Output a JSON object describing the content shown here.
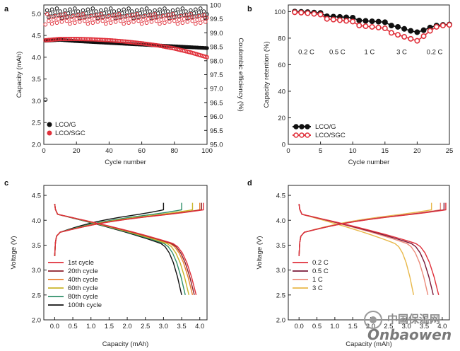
{
  "colors": {
    "black": "#111111",
    "red": "#e0313b",
    "c_1st": "#e0313b",
    "c_20th": "#8b1e2a",
    "c_40th": "#e8812f",
    "c_60th": "#c9b52a",
    "c_80th": "#2f8f6a",
    "c_100th": "#111111",
    "c_02C": "#e0313b",
    "c_05C": "#7a1838",
    "c_1C": "#ec8a7a",
    "c_3C": "#e8b84a",
    "axis": "#222222"
  },
  "watermark": {
    "cn": "中国保温网",
    "en": "Onbaowen"
  },
  "chart_data": [
    {
      "panel": "a",
      "type": "scatter",
      "xlabel": "Cycle number",
      "ylabel": "Capacity (mAh)",
      "y2label": "Coulombic efficiency (%)",
      "xlim": [
        0,
        100
      ],
      "ylim": [
        2.0,
        5.2
      ],
      "y2lim": [
        95.0,
        100.0
      ],
      "xticks": [
        "0",
        "20",
        "40",
        "60",
        "80",
        "100"
      ],
      "yticks": [
        "2.0",
        "2.5",
        "3.0",
        "3.5",
        "4.0",
        "4.5",
        "5.0"
      ],
      "y2ticks": [
        "95.0",
        "95.5",
        "96.0",
        "96.5",
        "97.0",
        "97.5",
        "98.0",
        "98.5",
        "99.0",
        "99.5",
        "100"
      ],
      "legend": [
        "LCO/G",
        "LCO/SGC"
      ],
      "legend_position": "bottom-left",
      "series": [
        {
          "name": "LCO/G",
          "color": "black",
          "capacity": [
            [
              1,
              4.38
            ],
            [
              10,
              4.4
            ],
            [
              20,
              4.37
            ],
            [
              30,
              4.35
            ],
            [
              40,
              4.33
            ],
            [
              50,
              4.31
            ],
            [
              60,
              4.29
            ],
            [
              70,
              4.27
            ],
            [
              80,
              4.25
            ],
            [
              90,
              4.23
            ],
            [
              100,
              4.21
            ]
          ],
          "efficiency_first": [
            1,
            96.6
          ],
          "efficiency_level": 99.7
        },
        {
          "name": "LCO/SGC",
          "color": "red",
          "capacity": [
            [
              1,
              4.39
            ],
            [
              10,
              4.42
            ],
            [
              20,
              4.42
            ],
            [
              30,
              4.41
            ],
            [
              40,
              4.39
            ],
            [
              50,
              4.36
            ],
            [
              60,
              4.32
            ],
            [
              70,
              4.27
            ],
            [
              80,
              4.2
            ],
            [
              90,
              4.11
            ],
            [
              100,
              4.0
            ]
          ],
          "efficiency_first": [
            1,
            99.3
          ],
          "efficiency_level": 99.5
        }
      ]
    },
    {
      "panel": "b",
      "type": "line",
      "xlabel": "Cycle number",
      "ylabel": "Capacity retention (%)",
      "xlim": [
        0,
        25
      ],
      "ylim": [
        0,
        105
      ],
      "xticks": [
        "0",
        "5",
        "10",
        "15",
        "20",
        "25"
      ],
      "yticks": [
        "0",
        "20",
        "40",
        "60",
        "80",
        "100"
      ],
      "rate_labels": [
        "0.2 C",
        "0.5 C",
        "1 C",
        "3 C",
        "0.2 C"
      ],
      "rate_label_x": [
        2.8,
        7.6,
        12.6,
        17.6,
        22.7
      ],
      "rate_label_y": 68,
      "legend": [
        "LCO/G",
        "LCO/SGC"
      ],
      "legend_position": "lower-left",
      "series": [
        {
          "name": "LCO/G",
          "color": "black",
          "values": [
            100,
            99.8,
            99.6,
            99.3,
            99.0,
            96.5,
            96.2,
            96.0,
            95.7,
            95.4,
            93.3,
            93.0,
            92.7,
            92.4,
            92.0,
            89.5,
            88.5,
            87.0,
            85.5,
            84.5,
            86.0,
            88.0,
            89.5,
            90.0,
            90.3
          ],
          "x": [
            1,
            2,
            3,
            4,
            5,
            6,
            7,
            8,
            9,
            10,
            11,
            12,
            13,
            14,
            15,
            16,
            17,
            18,
            19,
            20,
            21,
            22,
            23,
            24,
            25
          ]
        },
        {
          "name": "LCO/SGC",
          "color": "red",
          "values": [
            99.5,
            99.2,
            98.8,
            98.3,
            97.8,
            94.5,
            94.0,
            93.5,
            93.0,
            92.5,
            89.5,
            89.0,
            88.5,
            88.0,
            87.4,
            84.0,
            82.5,
            81.0,
            79.5,
            78.0,
            81.5,
            85.5,
            88.5,
            89.5,
            90.0
          ],
          "x": [
            1,
            2,
            3,
            4,
            5,
            6,
            7,
            8,
            9,
            10,
            11,
            12,
            13,
            14,
            15,
            16,
            17,
            18,
            19,
            20,
            21,
            22,
            23,
            24,
            25
          ]
        }
      ]
    },
    {
      "panel": "c",
      "type": "line",
      "xlabel": "Capacity (mAh)",
      "ylabel": "Voltage (V)",
      "xlim": [
        -0.3,
        4.2
      ],
      "ylim": [
        2.0,
        4.7
      ],
      "xticks": [
        "0.0",
        "0.5",
        "1.0",
        "1.5",
        "2.0",
        "2.5",
        "3.0",
        "3.5",
        "4.0"
      ],
      "yticks": [
        "2.0",
        "2.5",
        "3.0",
        "3.5",
        "4.0",
        "4.5"
      ],
      "legend": [
        "1st cycle",
        "20th cycle",
        "40th cycle",
        "60th cycle",
        "80th cycle",
        "100th cycle"
      ],
      "legend_position": "lower-left",
      "series": [
        {
          "name": "1st cycle",
          "color": "c_1st",
          "capacity_end": 4.1,
          "discharge_end": 3.9
        },
        {
          "name": "20th cycle",
          "color": "c_20th",
          "capacity_end": 4.05,
          "discharge_end": 3.85
        },
        {
          "name": "40th cycle",
          "color": "c_40th",
          "capacity_end": 4.0,
          "discharge_end": 3.8
        },
        {
          "name": "60th cycle",
          "color": "c_60th",
          "capacity_end": 3.8,
          "discharge_end": 3.7
        },
        {
          "name": "80th cycle",
          "color": "c_80th",
          "capacity_end": 3.5,
          "discharge_end": 3.6
        },
        {
          "name": "100th cycle",
          "color": "c_100th",
          "capacity_end": 3.0,
          "discharge_end": 3.5
        }
      ]
    },
    {
      "panel": "d",
      "type": "line",
      "xlabel": "Capacity (mAh)",
      "ylabel": "Voltage (V)",
      "xlim": [
        -0.3,
        4.2
      ],
      "ylim": [
        2.0,
        4.7
      ],
      "xticks": [
        "0.0",
        "0.5",
        "1.0",
        "1.5",
        "2.0",
        "2.5",
        "3.0",
        "3.5",
        "4.0"
      ],
      "yticks": [
        "2.0",
        "2.5",
        "3.0",
        "3.5",
        "4.0",
        "4.5"
      ],
      "legend": [
        "0.2 C",
        "0.5 C",
        "1 C",
        "3 C"
      ],
      "legend_position": "lower-left",
      "series": [
        {
          "name": "0.2 C",
          "color": "c_02C",
          "capacity_end": 4.1,
          "discharge_end": 3.9
        },
        {
          "name": "0.5 C",
          "color": "c_05C",
          "capacity_end": 4.05,
          "discharge_end": 3.75
        },
        {
          "name": "1 C",
          "color": "c_1C",
          "capacity_end": 3.95,
          "discharge_end": 3.6
        },
        {
          "name": "3 C",
          "color": "c_3C",
          "capacity_end": 3.7,
          "discharge_end": 3.2
        }
      ]
    }
  ]
}
